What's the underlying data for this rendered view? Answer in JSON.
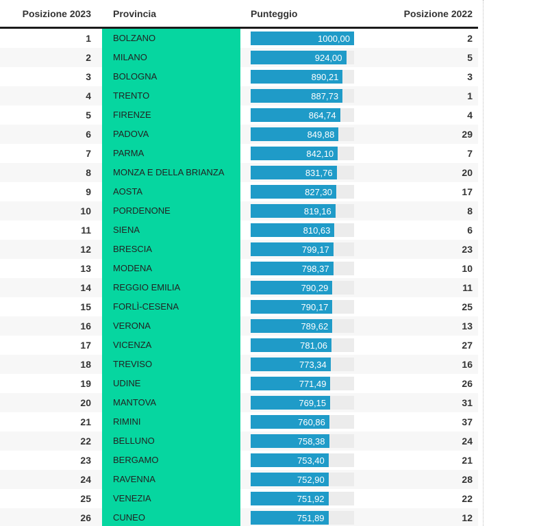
{
  "table": {
    "columns": [
      {
        "label": "Posizione 2023"
      },
      {
        "label": "Provincia"
      },
      {
        "label": "Punteggio"
      },
      {
        "label": "Posizione 2022"
      }
    ],
    "rows": [
      {
        "pos2023": "1",
        "provincia": "BOLZANO",
        "punteggio": "1000,00",
        "pos2022": "2"
      },
      {
        "pos2023": "2",
        "provincia": "MILANO",
        "punteggio": "924,00",
        "pos2022": "5"
      },
      {
        "pos2023": "3",
        "provincia": "BOLOGNA",
        "punteggio": "890,21",
        "pos2022": "3"
      },
      {
        "pos2023": "4",
        "provincia": "TRENTO",
        "punteggio": "887,73",
        "pos2022": "1"
      },
      {
        "pos2023": "5",
        "provincia": "FIRENZE",
        "punteggio": "864,74",
        "pos2022": "4"
      },
      {
        "pos2023": "6",
        "provincia": "PADOVA",
        "punteggio": "849,88",
        "pos2022": "29"
      },
      {
        "pos2023": "7",
        "provincia": "PARMA",
        "punteggio": "842,10",
        "pos2022": "7"
      },
      {
        "pos2023": "8",
        "provincia": "MONZA E DELLA BRIANZA",
        "punteggio": "831,76",
        "pos2022": "20"
      },
      {
        "pos2023": "9",
        "provincia": "AOSTA",
        "punteggio": "827,30",
        "pos2022": "17"
      },
      {
        "pos2023": "10",
        "provincia": "PORDENONE",
        "punteggio": "819,16",
        "pos2022": "8"
      },
      {
        "pos2023": "11",
        "provincia": "SIENA",
        "punteggio": "810,63",
        "pos2022": "6"
      },
      {
        "pos2023": "12",
        "provincia": "BRESCIA",
        "punteggio": "799,17",
        "pos2022": "23"
      },
      {
        "pos2023": "13",
        "provincia": "MODENA",
        "punteggio": "798,37",
        "pos2022": "10"
      },
      {
        "pos2023": "14",
        "provincia": "REGGIO EMILIA",
        "punteggio": "790,29",
        "pos2022": "11"
      },
      {
        "pos2023": "15",
        "provincia": "FORLÌ-CESENA",
        "punteggio": "790,17",
        "pos2022": "25"
      },
      {
        "pos2023": "16",
        "provincia": "VERONA",
        "punteggio": "789,62",
        "pos2022": "13"
      },
      {
        "pos2023": "17",
        "provincia": "VICENZA",
        "punteggio": "781,06",
        "pos2022": "27"
      },
      {
        "pos2023": "18",
        "provincia": "TREVISO",
        "punteggio": "773,34",
        "pos2022": "16"
      },
      {
        "pos2023": "19",
        "provincia": "UDINE",
        "punteggio": "771,49",
        "pos2022": "26"
      },
      {
        "pos2023": "20",
        "provincia": "MANTOVA",
        "punteggio": "769,15",
        "pos2022": "31"
      },
      {
        "pos2023": "21",
        "provincia": "RIMINI",
        "punteggio": "760,86",
        "pos2022": "37"
      },
      {
        "pos2023": "22",
        "provincia": "BELLUNO",
        "punteggio": "758,38",
        "pos2022": "24"
      },
      {
        "pos2023": "23",
        "provincia": "BERGAMO",
        "punteggio": "753,40",
        "pos2022": "21"
      },
      {
        "pos2023": "24",
        "provincia": "RAVENNA",
        "punteggio": "752,90",
        "pos2022": "28"
      },
      {
        "pos2023": "25",
        "provincia": "VENEZIA",
        "punteggio": "751,92",
        "pos2022": "22"
      },
      {
        "pos2023": "26",
        "provincia": "CUNEO",
        "punteggio": "751,89",
        "pos2022": "12"
      }
    ]
  },
  "colors": {
    "provincia_bg": "#06d6a0",
    "bar_fill": "#1f9bc8",
    "bar_track": "#ececec",
    "row_stripe": "#f7f7f7",
    "header_rule": "#1a1a1a"
  },
  "chart_data": {
    "type": "bar",
    "orientation": "horizontal",
    "title": "",
    "series_label": "Punteggio",
    "bar_max": 1000,
    "xlim": [
      0,
      1000
    ],
    "value_labels": "inside-end",
    "categories": [
      "BOLZANO",
      "MILANO",
      "BOLOGNA",
      "TRENTO",
      "FIRENZE",
      "PADOVA",
      "PARMA",
      "MONZA E DELLA BRIANZA",
      "AOSTA",
      "PORDENONE",
      "SIENA",
      "BRESCIA",
      "MODENA",
      "REGGIO EMILIA",
      "FORLÌ-CESENA",
      "VERONA",
      "VICENZA",
      "TREVISO",
      "UDINE",
      "MANTOVA",
      "RIMINI",
      "BELLUNO",
      "BERGAMO",
      "RAVENNA",
      "VENEZIA",
      "CUNEO"
    ],
    "values": [
      1000.0,
      924.0,
      890.21,
      887.73,
      864.74,
      849.88,
      842.1,
      831.76,
      827.3,
      819.16,
      810.63,
      799.17,
      798.37,
      790.29,
      790.17,
      789.62,
      781.06,
      773.34,
      771.49,
      769.15,
      760.86,
      758.38,
      753.4,
      752.9,
      751.92,
      751.89
    ],
    "extra_series": [
      {
        "name": "Posizione 2023",
        "values": [
          1,
          2,
          3,
          4,
          5,
          6,
          7,
          8,
          9,
          10,
          11,
          12,
          13,
          14,
          15,
          16,
          17,
          18,
          19,
          20,
          21,
          22,
          23,
          24,
          25,
          26
        ]
      },
      {
        "name": "Posizione 2022",
        "values": [
          2,
          5,
          3,
          1,
          4,
          29,
          7,
          20,
          17,
          8,
          6,
          23,
          10,
          11,
          25,
          13,
          27,
          16,
          26,
          31,
          37,
          24,
          21,
          28,
          22,
          12
        ]
      }
    ]
  }
}
